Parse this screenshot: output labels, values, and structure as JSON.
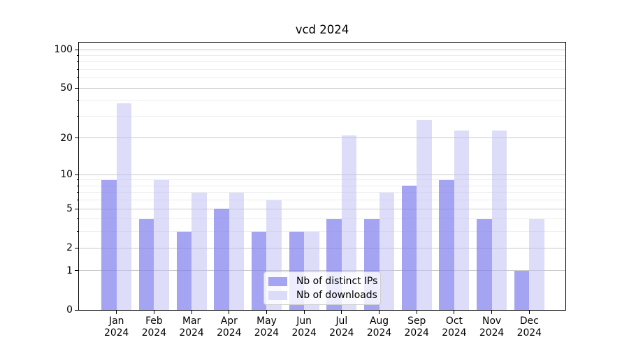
{
  "title": "vcd 2024",
  "chart_data": {
    "type": "bar",
    "title": "vcd 2024",
    "categories": [
      "Jan",
      "Feb",
      "Mar",
      "Apr",
      "May",
      "Jun",
      "Jul",
      "Aug",
      "Sep",
      "Oct",
      "Nov",
      "Dec"
    ],
    "x_year_label": "2024",
    "series": [
      {
        "name": "Nb of distinct IPs",
        "values": [
          9,
          4,
          3,
          5,
          3,
          3,
          4,
          4,
          8,
          9,
          4,
          1
        ],
        "color": "#a4a4f2",
        "rgba": "rgba(125,125,236,0.70)"
      },
      {
        "name": "Nb of downloads",
        "values": [
          38,
          9,
          7,
          7,
          6,
          3,
          21,
          7,
          28,
          23,
          23,
          4
        ],
        "color": "#dcdcf8",
        "rgba": "rgba(190,190,243,0.52)"
      }
    ],
    "yscale": "log1p",
    "ylim": [
      0,
      112
    ],
    "xlabel": "",
    "ylabel": "",
    "y_major_ticks": [
      0,
      1,
      2,
      5,
      10,
      20,
      50,
      100
    ],
    "y_minor_ticks": [
      3,
      4,
      6,
      7,
      8,
      9,
      30,
      40,
      60,
      70,
      80,
      90
    ],
    "grid": true,
    "legend_position": "lower center"
  },
  "colors": {
    "grid_major": "#c9c9c9",
    "grid_minor": "#ededed",
    "frame": "#000000",
    "legend_border": "#cccccc",
    "legend_background": "rgba(255,255,255,0.8)",
    "text": "#000000"
  }
}
